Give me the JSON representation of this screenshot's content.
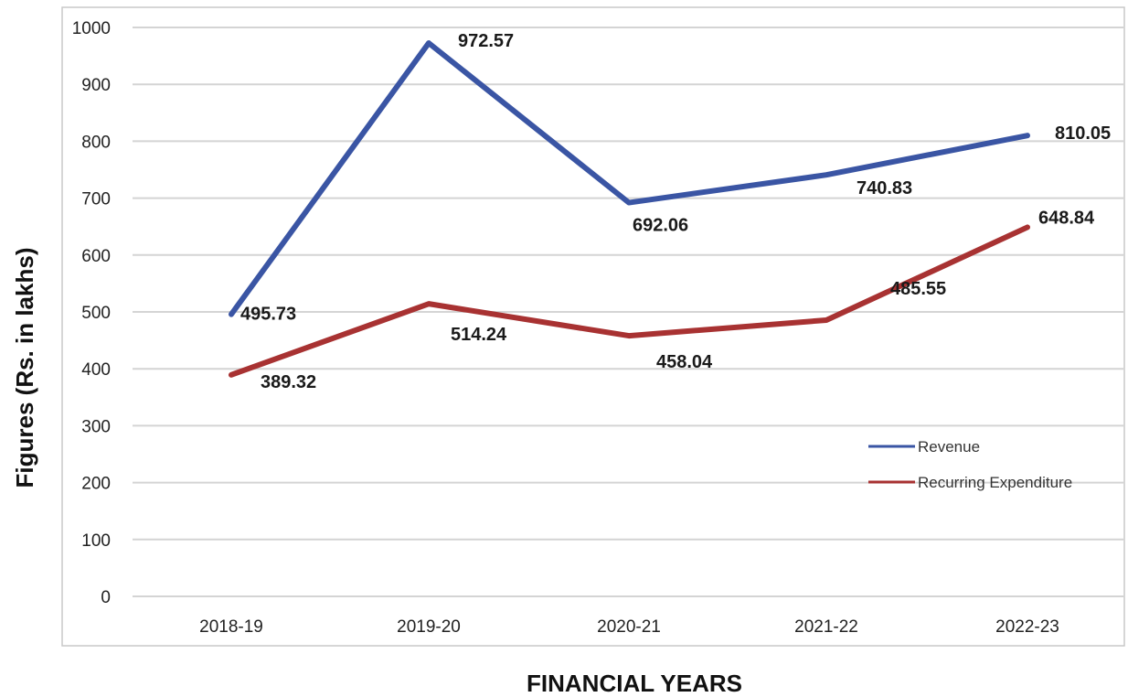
{
  "chart_data": {
    "type": "line",
    "title": "",
    "xlabel": "FINANCIAL YEARS",
    "ylabel": "Figures (Rs. in lakhs)",
    "categories": [
      "2018-19",
      "2019-20",
      "2020-21",
      "2021-22",
      "2022-23"
    ],
    "ylim": [
      0,
      1000
    ],
    "yticks": [
      0,
      100,
      200,
      300,
      400,
      500,
      600,
      700,
      800,
      900,
      1000
    ],
    "grid": true,
    "legend_position": "right",
    "series": [
      {
        "name": "Revenue",
        "color": "#3a55a4",
        "values": [
          495.73,
          972.57,
          692.06,
          740.83,
          810.05
        ],
        "labels": [
          "495.73",
          "972.57",
          "692.06",
          "740.83",
          "810.05"
        ]
      },
      {
        "name": "Recurring Expenditure",
        "color": "#a83232",
        "values": [
          389.32,
          514.24,
          458.04,
          485.55,
          648.84
        ],
        "labels": [
          "389.32",
          "514.24",
          "458.04",
          "485.55",
          "648.84"
        ]
      }
    ]
  }
}
